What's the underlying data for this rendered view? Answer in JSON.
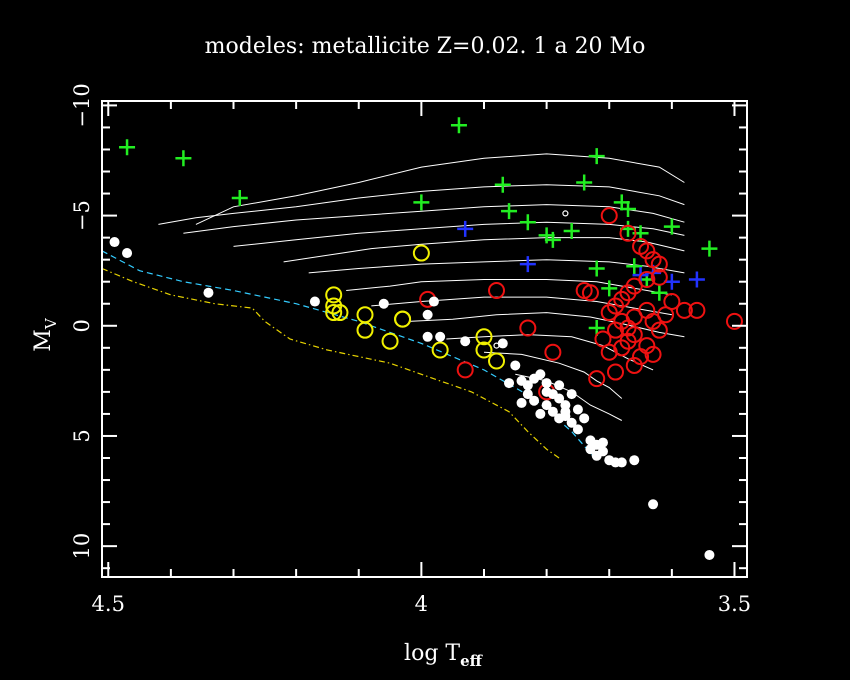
{
  "chart_data": {
    "type": "scatter",
    "title": "modeles: metallicite Z=0.02. 1 a 20 Mo",
    "xlabel_main": "log T",
    "xlabel_sub": "eff",
    "ylabel_main": "M",
    "ylabel_sub": "V",
    "xlim": [
      4.51,
      3.48
    ],
    "ylim": [
      11.4,
      -10.2
    ],
    "x_ticks": [
      {
        "value": 4.5,
        "label": "4.5"
      },
      {
        "value": 4.0,
        "label": "4"
      },
      {
        "value": 3.5,
        "label": "3.5"
      }
    ],
    "y_ticks": [
      {
        "value": -10,
        "label": "−10"
      },
      {
        "value": -5,
        "label": "−5"
      },
      {
        "value": 0,
        "label": "0"
      },
      {
        "value": 5,
        "label": "5"
      },
      {
        "value": 10,
        "label": "10"
      }
    ],
    "x_minor_step": 0.1,
    "y_minor_step": 1,
    "colors": {
      "background": "#000000",
      "frame": "#ffffff",
      "tracks": "#ffffff",
      "zams": "#33ccff",
      "zams2": "#e6d200",
      "green": "#22ee22",
      "blue": "#2233ff",
      "red": "#ee1111",
      "yellow": "#f0f000",
      "white": "#ffffff"
    },
    "lines": [
      {
        "name": "zams",
        "style": "dashed",
        "color": "zams",
        "points": [
          [
            4.51,
            -3.4
          ],
          [
            4.45,
            -2.5
          ],
          [
            4.38,
            -2.0
          ],
          [
            4.3,
            -1.6
          ],
          [
            4.2,
            -1.0
          ],
          [
            4.1,
            -0.2
          ],
          [
            4.0,
            0.8
          ],
          [
            3.9,
            2.0
          ],
          [
            3.82,
            3.3
          ],
          [
            3.76,
            4.8
          ],
          [
            3.72,
            6.1
          ]
        ]
      },
      {
        "name": "zams-low",
        "style": "dashdot",
        "color": "zams2",
        "points": [
          [
            4.51,
            -2.6
          ],
          [
            4.46,
            -2.0
          ],
          [
            4.4,
            -1.4
          ],
          [
            4.33,
            -1.0
          ],
          [
            4.27,
            -0.8
          ],
          [
            4.25,
            -0.2
          ],
          [
            4.21,
            0.6
          ],
          [
            4.15,
            1.1
          ],
          [
            4.05,
            1.7
          ],
          [
            4.0,
            2.2
          ],
          [
            3.92,
            3.0
          ],
          [
            3.86,
            3.9
          ],
          [
            3.83,
            4.8
          ],
          [
            3.8,
            5.6
          ],
          [
            3.78,
            6.0
          ]
        ]
      }
    ],
    "tracks": [
      [
        [
          4.36,
          -4.6
        ],
        [
          4.3,
          -5.4
        ],
        [
          4.2,
          -5.9
        ],
        [
          4.1,
          -6.5
        ],
        [
          4.0,
          -7.2
        ],
        [
          3.9,
          -7.6
        ],
        [
          3.8,
          -7.8
        ],
        [
          3.7,
          -7.6
        ],
        [
          3.62,
          -7.2
        ],
        [
          3.58,
          -6.5
        ]
      ],
      [
        [
          4.42,
          -4.6
        ],
        [
          4.36,
          -4.9
        ],
        [
          4.3,
          -5.1
        ],
        [
          4.2,
          -5.4
        ],
        [
          4.1,
          -5.8
        ],
        [
          4.0,
          -6.1
        ],
        [
          3.9,
          -6.3
        ],
        [
          3.8,
          -6.4
        ],
        [
          3.7,
          -6.3
        ],
        [
          3.62,
          -5.9
        ],
        [
          3.58,
          -5.5
        ]
      ],
      [
        [
          4.38,
          -4.2
        ],
        [
          4.3,
          -4.5
        ],
        [
          4.2,
          -4.8
        ],
        [
          4.1,
          -5.0
        ],
        [
          4.0,
          -5.2
        ],
        [
          3.9,
          -5.4
        ],
        [
          3.8,
          -5.5
        ],
        [
          3.7,
          -5.4
        ],
        [
          3.63,
          -5.1
        ],
        [
          3.58,
          -4.7
        ]
      ],
      [
        [
          4.3,
          -3.6
        ],
        [
          4.2,
          -3.9
        ],
        [
          4.1,
          -4.2
        ],
        [
          4.0,
          -4.4
        ],
        [
          3.9,
          -4.6
        ],
        [
          3.8,
          -4.7
        ],
        [
          3.7,
          -4.6
        ],
        [
          3.63,
          -4.4
        ],
        [
          3.58,
          -4.1
        ]
      ],
      [
        [
          4.22,
          -2.9
        ],
        [
          4.15,
          -3.2
        ],
        [
          4.08,
          -3.5
        ],
        [
          4.0,
          -3.7
        ],
        [
          3.9,
          -3.9
        ],
        [
          3.8,
          -4.0
        ],
        [
          3.7,
          -4.0
        ],
        [
          3.64,
          -3.8
        ],
        [
          3.58,
          -3.4
        ]
      ],
      [
        [
          4.18,
          -2.4
        ],
        [
          4.1,
          -2.6
        ],
        [
          4.0,
          -2.8
        ],
        [
          3.9,
          -2.9
        ],
        [
          3.8,
          -3.0
        ],
        [
          3.7,
          -2.9
        ],
        [
          3.64,
          -2.7
        ],
        [
          3.58,
          -2.4
        ]
      ],
      [
        [
          4.12,
          -1.6
        ],
        [
          4.05,
          -1.8
        ],
        [
          4.0,
          -2.0
        ],
        [
          3.9,
          -2.1
        ],
        [
          3.8,
          -2.1
        ],
        [
          3.72,
          -2.0
        ],
        [
          3.66,
          -1.7
        ],
        [
          3.6,
          -1.4
        ]
      ],
      [
        [
          4.08,
          -0.9
        ],
        [
          4.0,
          -1.1
        ],
        [
          3.9,
          -1.3
        ],
        [
          3.8,
          -1.3
        ],
        [
          3.72,
          -1.1
        ],
        [
          3.66,
          -0.8
        ],
        [
          3.6,
          -0.5
        ]
      ],
      [
        [
          4.02,
          -0.2
        ],
        [
          3.95,
          -0.3
        ],
        [
          3.88,
          -0.5
        ],
        [
          3.8,
          -0.6
        ],
        [
          3.73,
          -0.4
        ],
        [
          3.68,
          -0.1
        ],
        [
          3.62,
          0.3
        ],
        [
          3.58,
          0.5
        ]
      ],
      [
        [
          3.96,
          0.6
        ],
        [
          3.9,
          0.5
        ],
        [
          3.83,
          0.4
        ],
        [
          3.76,
          0.5
        ],
        [
          3.71,
          0.9
        ],
        [
          3.67,
          1.5
        ],
        [
          3.63,
          2.0
        ]
      ],
      [
        [
          3.9,
          1.2
        ],
        [
          3.84,
          1.3
        ],
        [
          3.78,
          1.7
        ],
        [
          3.74,
          2.1
        ],
        [
          3.72,
          2.5
        ],
        [
          3.7,
          2.8
        ],
        [
          3.68,
          3.3
        ]
      ],
      [
        [
          3.85,
          2.2
        ],
        [
          3.8,
          2.5
        ],
        [
          3.76,
          3.0
        ],
        [
          3.73,
          3.6
        ],
        [
          3.7,
          4.0
        ],
        [
          3.68,
          4.3
        ]
      ]
    ],
    "series": [
      {
        "name": "",
        "marker": "plus",
        "color": "green",
        "points": [
          [
            4.47,
            -8.1
          ],
          [
            4.38,
            -7.6
          ],
          [
            4.29,
            -5.8
          ],
          [
            3.94,
            -9.1
          ],
          [
            3.87,
            -6.4
          ],
          [
            3.86,
            -5.2
          ],
          [
            3.83,
            -4.7
          ],
          [
            3.8,
            -4.1
          ],
          [
            3.79,
            -3.9
          ],
          [
            3.76,
            -4.3
          ],
          [
            3.74,
            -6.5
          ],
          [
            3.72,
            -7.7
          ],
          [
            3.72,
            -2.6
          ],
          [
            3.72,
            0.1
          ],
          [
            3.7,
            -1.7
          ],
          [
            3.68,
            -5.6
          ],
          [
            3.67,
            -4.4
          ],
          [
            3.67,
            -5.3
          ],
          [
            3.66,
            -2.7
          ],
          [
            3.65,
            -4.2
          ],
          [
            3.64,
            -2.1
          ],
          [
            3.62,
            -1.5
          ],
          [
            3.6,
            -4.5
          ],
          [
            3.54,
            -3.5
          ],
          [
            4.0,
            -5.6
          ]
        ]
      },
      {
        "name": "",
        "marker": "plus",
        "color": "blue",
        "points": [
          [
            3.93,
            -4.4
          ],
          [
            3.83,
            -2.8
          ],
          [
            3.65,
            -2.3
          ],
          [
            3.63,
            -2.4
          ],
          [
            3.6,
            -2.0
          ],
          [
            3.56,
            -2.1
          ]
        ]
      },
      {
        "name": "",
        "marker": "circle",
        "color": "red",
        "points": [
          [
            3.7,
            -5.0
          ],
          [
            3.67,
            -4.2
          ],
          [
            3.65,
            -3.6
          ],
          [
            3.64,
            -3.4
          ],
          [
            3.63,
            -3.0
          ],
          [
            3.62,
            -2.8
          ],
          [
            3.62,
            -2.2
          ],
          [
            3.64,
            -2.1
          ],
          [
            3.66,
            -1.8
          ],
          [
            3.67,
            -1.5
          ],
          [
            3.68,
            -1.2
          ],
          [
            3.69,
            -0.9
          ],
          [
            3.7,
            -0.6
          ],
          [
            3.68,
            -0.2
          ],
          [
            3.67,
            0.1
          ],
          [
            3.66,
            0.4
          ],
          [
            3.67,
            0.7
          ],
          [
            3.68,
            1.0
          ],
          [
            3.7,
            1.2
          ],
          [
            3.71,
            0.6
          ],
          [
            3.69,
            0.2
          ],
          [
            3.66,
            -0.4
          ],
          [
            3.64,
            -0.7
          ],
          [
            3.63,
            -0.2
          ],
          [
            3.62,
            0.2
          ],
          [
            3.61,
            -0.5
          ],
          [
            3.6,
            -1.1
          ],
          [
            3.58,
            -0.7
          ],
          [
            3.56,
            -0.7
          ],
          [
            3.5,
            -0.2
          ],
          [
            3.65,
            1.4
          ],
          [
            3.66,
            1.8
          ],
          [
            3.69,
            2.1
          ],
          [
            3.72,
            2.4
          ],
          [
            3.79,
            1.2
          ],
          [
            3.83,
            0.1
          ],
          [
            3.88,
            -1.6
          ],
          [
            3.93,
            2.0
          ],
          [
            3.74,
            -1.6
          ],
          [
            3.73,
            -1.5
          ],
          [
            3.99,
            -1.2
          ],
          [
            3.8,
            3.0
          ],
          [
            3.64,
            0.9
          ],
          [
            3.63,
            1.3
          ]
        ]
      },
      {
        "name": "",
        "marker": "circle",
        "color": "yellow",
        "points": [
          [
            4.0,
            -3.3
          ],
          [
            4.14,
            -1.4
          ],
          [
            4.14,
            -0.9
          ],
          [
            4.14,
            -0.6
          ],
          [
            4.13,
            -0.6
          ],
          [
            4.09,
            -0.5
          ],
          [
            4.09,
            0.2
          ],
          [
            4.05,
            0.7
          ],
          [
            4.03,
            -0.3
          ],
          [
            4.03,
            -0.3
          ],
          [
            3.97,
            1.1
          ],
          [
            3.9,
            0.5
          ],
          [
            3.9,
            1.1
          ],
          [
            3.88,
            1.6
          ]
        ]
      },
      {
        "name": "",
        "marker": "dot",
        "color": "white",
        "points": [
          [
            4.49,
            -3.8
          ],
          [
            4.47,
            -3.3
          ],
          [
            4.34,
            -1.5
          ],
          [
            4.17,
            -1.1
          ],
          [
            4.06,
            -1.0
          ],
          [
            3.99,
            -0.5
          ],
          [
            3.98,
            -1.1
          ],
          [
            3.99,
            0.5
          ],
          [
            3.97,
            0.5
          ],
          [
            3.93,
            0.7
          ],
          [
            3.87,
            0.8
          ],
          [
            3.85,
            1.8
          ],
          [
            3.84,
            2.5
          ],
          [
            3.83,
            2.7
          ],
          [
            3.83,
            3.1
          ],
          [
            3.82,
            3.4
          ],
          [
            3.81,
            2.2
          ],
          [
            3.8,
            3.0
          ],
          [
            3.8,
            3.6
          ],
          [
            3.79,
            3.9
          ],
          [
            3.78,
            2.7
          ],
          [
            3.78,
            3.3
          ],
          [
            3.77,
            4.1
          ],
          [
            3.77,
            3.6
          ],
          [
            3.76,
            4.4
          ],
          [
            3.76,
            3.1
          ],
          [
            3.75,
            4.7
          ],
          [
            3.75,
            3.8
          ],
          [
            3.74,
            4.2
          ],
          [
            3.73,
            5.2
          ],
          [
            3.73,
            5.6
          ],
          [
            3.72,
            5.4
          ],
          [
            3.72,
            5.9
          ],
          [
            3.71,
            5.7
          ],
          [
            3.71,
            5.3
          ],
          [
            3.7,
            6.1
          ],
          [
            3.69,
            6.2
          ],
          [
            3.68,
            6.2
          ],
          [
            3.82,
            2.4
          ],
          [
            3.81,
            4.0
          ],
          [
            3.78,
            4.2
          ],
          [
            3.79,
            3.1
          ],
          [
            3.86,
            2.6
          ],
          [
            3.84,
            3.5
          ],
          [
            3.8,
            2.6
          ],
          [
            3.77,
            3.9
          ],
          [
            3.66,
            6.1
          ],
          [
            3.63,
            8.1
          ],
          [
            3.54,
            10.4
          ]
        ]
      },
      {
        "name": "",
        "marker": "smallcircle",
        "color": "white",
        "points": [
          [
            3.77,
            -5.1
          ],
          [
            3.88,
            0.9
          ]
        ]
      }
    ]
  }
}
